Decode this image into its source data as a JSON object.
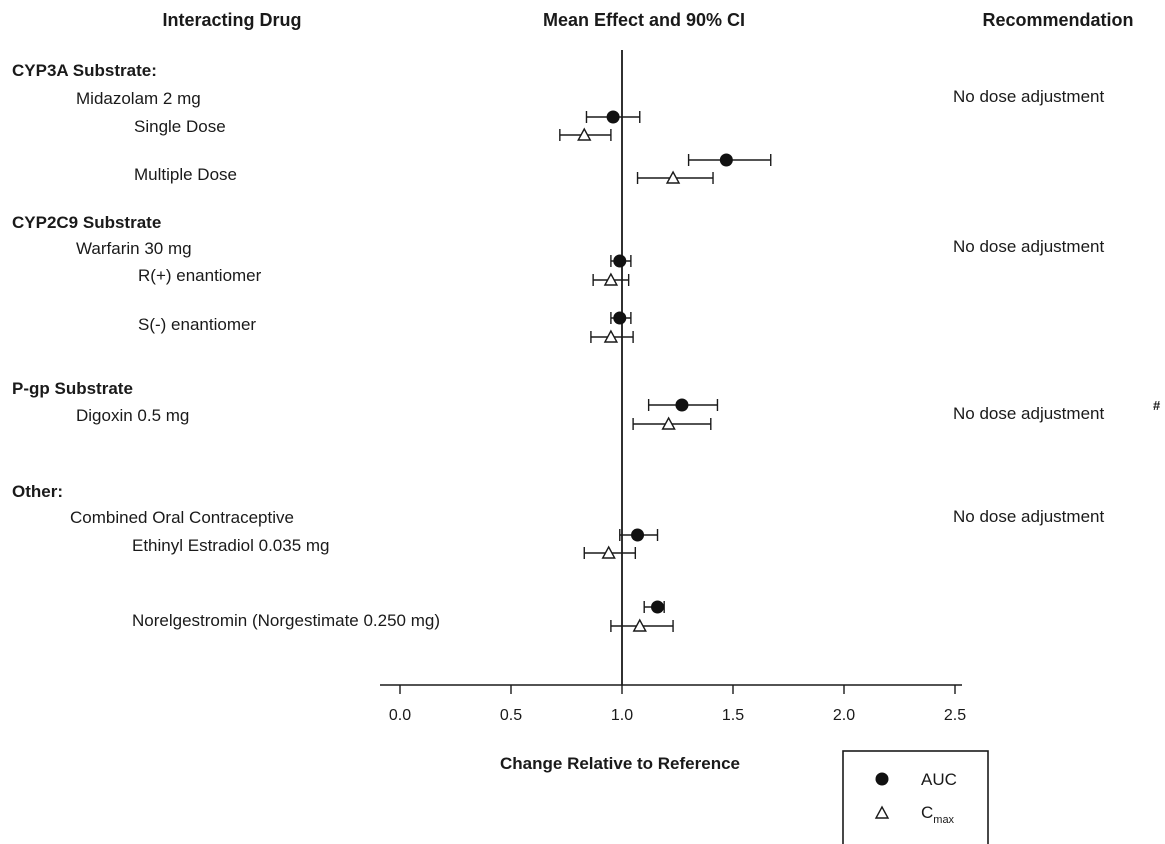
{
  "chart_data": {
    "type": "forest",
    "headers": {
      "left": "Interacting Drug",
      "center": "Mean Effect and 90% CI",
      "right": "Recommendation"
    },
    "xlabel": "Change Relative to Reference",
    "xlim": [
      0.0,
      2.5
    ],
    "xticks": [
      "0.0",
      "0.5",
      "1.0",
      "1.5",
      "2.0",
      "2.5"
    ],
    "reference_line": 1.0,
    "legend": {
      "position": "bottom-right",
      "entries": [
        {
          "marker": "filled-circle",
          "label": "AUC"
        },
        {
          "marker": "open-triangle",
          "label": "C",
          "subscript": "max"
        }
      ]
    },
    "groups": [
      {
        "label": "CYP3A Substrate:",
        "level": 0
      },
      {
        "label": "Midazolam 2 mg",
        "level": 1,
        "recommendation": "No dose adjustment"
      },
      {
        "label": "Single Dose",
        "level": 2,
        "auc": {
          "mean": 0.96,
          "lo": 0.84,
          "hi": 1.08
        },
        "cmax": {
          "mean": 0.83,
          "lo": 0.72,
          "hi": 0.95
        }
      },
      {
        "label": "Multiple Dose",
        "level": 2,
        "auc": {
          "mean": 1.47,
          "lo": 1.3,
          "hi": 1.67
        },
        "cmax": {
          "mean": 1.23,
          "lo": 1.07,
          "hi": 1.41
        }
      },
      {
        "label": "CYP2C9 Substrate",
        "level": 0
      },
      {
        "label": "Warfarin 30 mg",
        "level": 1,
        "recommendation": "No dose adjustment"
      },
      {
        "label": "R(+) enantiomer",
        "level": 2,
        "auc": {
          "mean": 0.99,
          "lo": 0.95,
          "hi": 1.04
        },
        "cmax": {
          "mean": 0.95,
          "lo": 0.87,
          "hi": 1.03
        }
      },
      {
        "label": "S(-) enantiomer",
        "level": 2,
        "auc": {
          "mean": 0.99,
          "lo": 0.95,
          "hi": 1.04
        },
        "cmax": {
          "mean": 0.95,
          "lo": 0.86,
          "hi": 1.05
        }
      },
      {
        "label": "P-gp Substrate",
        "level": 0
      },
      {
        "label": "Digoxin 0.5 mg",
        "level": 1,
        "recommendation": "No dose adjustment",
        "recommendation_mark": "#",
        "auc": {
          "mean": 1.27,
          "lo": 1.12,
          "hi": 1.43
        },
        "cmax": {
          "mean": 1.21,
          "lo": 1.05,
          "hi": 1.4
        }
      },
      {
        "label": "Other:",
        "level": 0
      },
      {
        "label": "Combined Oral Contraceptive",
        "level": 1,
        "recommendation": "No dose adjustment"
      },
      {
        "label": "Ethinyl Estradiol 0.035 mg",
        "level": 2,
        "auc": {
          "mean": 1.07,
          "lo": 0.99,
          "hi": 1.16
        },
        "cmax": {
          "mean": 0.94,
          "lo": 0.83,
          "hi": 1.06
        }
      },
      {
        "label": "Norelgestromin (Norgestimate 0.250 mg)",
        "level": 2,
        "auc": {
          "mean": 1.16,
          "lo": 1.1,
          "hi": 1.19
        },
        "cmax": {
          "mean": 1.08,
          "lo": 0.95,
          "hi": 1.23
        }
      }
    ]
  }
}
